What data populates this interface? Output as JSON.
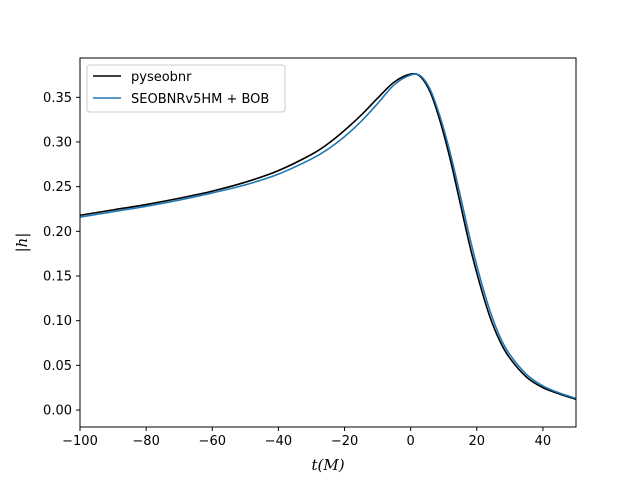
{
  "chart_data": {
    "type": "line",
    "title": "",
    "xlabel": "t(M)",
    "ylabel": "|h|",
    "xlim": [
      -100,
      50
    ],
    "ylim": [
      -0.019,
      0.394
    ],
    "xticks": [
      -100,
      -80,
      -60,
      -40,
      -20,
      0,
      20,
      40
    ],
    "xtick_labels": [
      "−100",
      "−80",
      "−60",
      "−40",
      "−20",
      "0",
      "20",
      "40"
    ],
    "yticks": [
      0.0,
      0.05,
      0.1,
      0.15,
      0.2,
      0.25,
      0.3,
      0.35
    ],
    "ytick_labels": [
      "0.00",
      "0.05",
      "0.10",
      "0.15",
      "0.20",
      "0.25",
      "0.30",
      "0.35"
    ],
    "grid": false,
    "legend": "top-left",
    "series": [
      {
        "name": "pyseobnr",
        "color": "#000000",
        "x": [
          -100,
          -90,
          -80,
          -70,
          -60,
          -50,
          -40,
          -30,
          -25,
          -20,
          -15,
          -10,
          -5,
          0,
          3,
          6,
          9,
          12,
          15,
          18,
          21,
          24,
          27,
          30,
          35,
          40,
          45,
          50
        ],
        "y": [
          0.218,
          0.224,
          0.23,
          0.237,
          0.245,
          0.255,
          0.268,
          0.286,
          0.298,
          0.313,
          0.33,
          0.349,
          0.367,
          0.376,
          0.373,
          0.355,
          0.322,
          0.28,
          0.231,
          0.182,
          0.14,
          0.104,
          0.077,
          0.058,
          0.037,
          0.025,
          0.018,
          0.012
        ]
      },
      {
        "name": "SEOBNRv5HM + BOB",
        "color": "#1f77b4",
        "x": [
          -100,
          -90,
          -80,
          -70,
          -60,
          -50,
          -40,
          -30,
          -25,
          -20,
          -15,
          -10,
          -5,
          0,
          3,
          6,
          9,
          12,
          15,
          18,
          21,
          24,
          27,
          30,
          35,
          40,
          45,
          50
        ],
        "y": [
          0.216,
          0.222,
          0.228,
          0.235,
          0.243,
          0.252,
          0.264,
          0.281,
          0.292,
          0.306,
          0.323,
          0.343,
          0.364,
          0.375,
          0.374,
          0.358,
          0.327,
          0.287,
          0.24,
          0.191,
          0.148,
          0.111,
          0.082,
          0.062,
          0.04,
          0.027,
          0.019,
          0.013
        ]
      }
    ]
  }
}
